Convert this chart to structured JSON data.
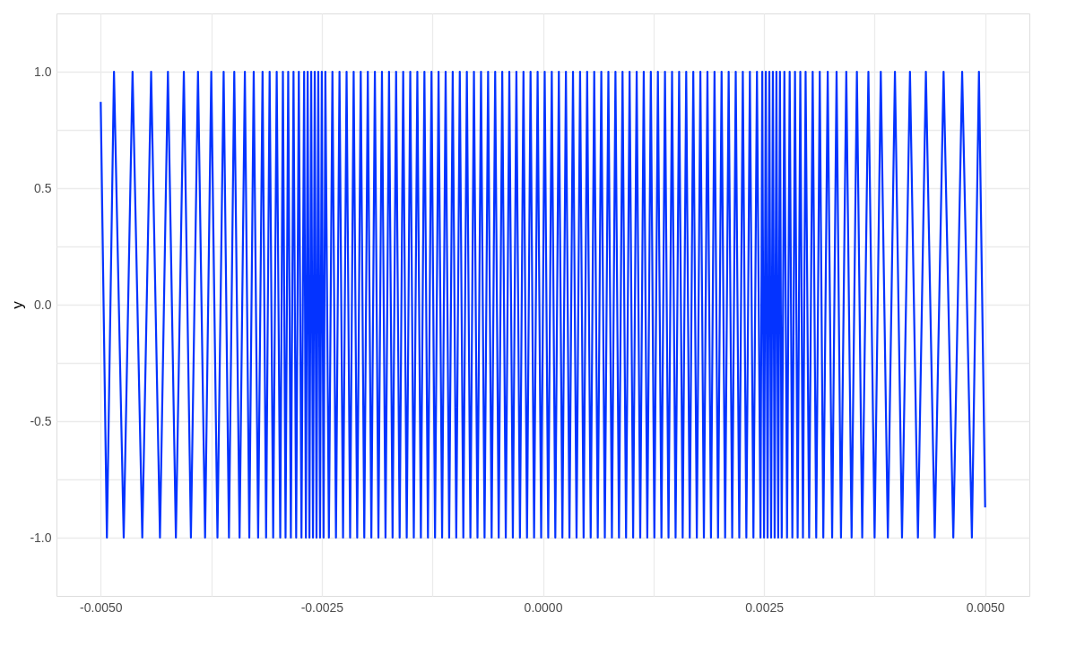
{
  "chart_data": {
    "type": "line",
    "ylabel": "y",
    "grid": true,
    "marker": "none",
    "line_style": "solid",
    "xlim": [
      -0.0055,
      0.0055
    ],
    "ylim": [
      -1.25,
      1.25
    ],
    "xticks": [
      {
        "value": -0.005,
        "label": "-0.0050"
      },
      {
        "value": -0.0025,
        "label": "-0.0025"
      },
      {
        "value": 0,
        "label": "0.0000"
      },
      {
        "value": 0.0025,
        "label": "0.0025"
      },
      {
        "value": 0.005,
        "label": "0.0050"
      }
    ],
    "yticks": [
      {
        "value": -1,
        "label": "-1.0"
      },
      {
        "value": -0.5,
        "label": "-0.5"
      },
      {
        "value": 0,
        "label": "0.0"
      },
      {
        "value": 0.5,
        "label": "0.5"
      },
      {
        "value": 1,
        "label": "1.0"
      }
    ],
    "series": [
      {
        "color": "#0433ff",
        "x": [
          -0.005,
          -0.00493,
          -0.00485,
          -0.00474,
          -0.00464,
          -0.00453,
          -0.00443,
          -0.00433,
          -0.00424,
          -0.00415,
          -0.00406,
          -0.00398,
          -0.0039,
          -0.00382,
          -0.00375,
          -0.00368,
          -0.00361,
          -0.00355,
          -0.00349,
          -0.00343,
          -0.00337,
          -0.00332,
          -0.00327,
          -0.00322,
          -0.00317,
          -0.00313,
          -0.00309,
          -0.00305,
          -0.00301,
          -0.00297,
          -0.00294,
          -0.00291,
          -0.00288,
          -0.00285,
          -0.00282,
          -0.00279,
          -0.00276,
          -0.00273,
          -0.0027,
          -0.00268,
          -0.00266,
          -0.00264,
          -0.00262,
          -0.0026,
          -0.00258,
          -0.00256,
          -0.00254,
          -0.00252,
          -0.0025,
          -0.00248,
          -0.00246,
          -0.00242,
          -0.00238,
          -0.00234,
          -0.0023,
          -0.00226,
          -0.00222,
          -0.00218,
          -0.00214,
          -0.0021,
          -0.00206,
          -0.00202,
          -0.00198,
          -0.00194,
          -0.0019,
          -0.00186,
          -0.00182,
          -0.00178,
          -0.00174,
          -0.0017,
          -0.00166,
          -0.00162,
          -0.00158,
          -0.00154,
          -0.0015,
          -0.00146,
          -0.00142,
          -0.00138,
          -0.00134,
          -0.0013,
          -0.00126,
          -0.00122,
          -0.00118,
          -0.00114,
          -0.0011,
          -0.00106,
          -0.00102,
          -0.00098,
          -0.00094,
          -0.0009,
          -0.00086,
          -0.00082,
          -0.00078,
          -0.00074,
          -0.0007,
          -0.00066,
          -0.00062,
          -0.00058,
          -0.00054,
          -0.0005,
          -0.00046,
          -0.00042,
          -0.00038,
          -0.00034,
          -0.0003,
          -0.00026,
          -0.00022,
          -0.00018,
          -0.00014,
          -0.0001,
          -6e-05,
          -2e-05,
          2e-05,
          6e-05,
          0.0001,
          0.00014,
          0.00018,
          0.00022,
          0.00026,
          0.0003,
          0.00034,
          0.00038,
          0.00042,
          0.00046,
          0.0005,
          0.00054,
          0.00058,
          0.00062,
          0.00066,
          0.0007,
          0.00074,
          0.00078,
          0.00082,
          0.00086,
          0.0009,
          0.00094,
          0.00098,
          0.00102,
          0.00106,
          0.0011,
          0.00114,
          0.00118,
          0.00122,
          0.00126,
          0.0013,
          0.00134,
          0.00138,
          0.00142,
          0.00146,
          0.0015,
          0.00154,
          0.00158,
          0.00162,
          0.00166,
          0.0017,
          0.00174,
          0.00178,
          0.00182,
          0.00186,
          0.0019,
          0.00194,
          0.00198,
          0.00202,
          0.00206,
          0.0021,
          0.00214,
          0.00218,
          0.00222,
          0.00226,
          0.0023,
          0.00234,
          0.00238,
          0.00242,
          0.00246,
          0.00248,
          0.0025,
          0.00252,
          0.00254,
          0.00256,
          0.00258,
          0.0026,
          0.00262,
          0.00264,
          0.00266,
          0.00268,
          0.0027,
          0.00273,
          0.00276,
          0.00279,
          0.00282,
          0.00285,
          0.00288,
          0.00291,
          0.00294,
          0.00297,
          0.00301,
          0.00305,
          0.00309,
          0.00313,
          0.00317,
          0.00322,
          0.00327,
          0.00332,
          0.00337,
          0.00343,
          0.00349,
          0.00355,
          0.00361,
          0.00368,
          0.00375,
          0.00382,
          0.0039,
          0.00398,
          0.00406,
          0.00415,
          0.00424,
          0.00433,
          0.00443,
          0.00453,
          0.00464,
          0.00474,
          0.00485,
          0.00493,
          0.005
        ],
        "values": [
          0.87,
          -1,
          1,
          -1,
          1,
          -1,
          1,
          -1,
          1,
          -1,
          1,
          -1,
          1,
          -1,
          1,
          -1,
          1,
          -1,
          1,
          -1,
          1,
          -1,
          1,
          -1,
          1,
          -1,
          1,
          -1,
          1,
          -1,
          1,
          -1,
          1,
          -1,
          1,
          -1,
          1,
          -1,
          1,
          -1,
          1,
          -1,
          1,
          -1,
          1,
          -1,
          1,
          -1,
          1,
          -1,
          1,
          -1,
          1,
          -1,
          1,
          -1,
          1,
          -1,
          1,
          -1,
          1,
          -1,
          1,
          -1,
          1,
          -1,
          1,
          -1,
          1,
          -1,
          1,
          -1,
          1,
          -1,
          1,
          -1,
          1,
          -1,
          1,
          -1,
          1,
          -1,
          1,
          -1,
          1,
          -1,
          1,
          -1,
          1,
          -1,
          1,
          -1,
          1,
          -1,
          1,
          -1,
          1,
          -1,
          1,
          -1,
          1,
          -1,
          1,
          -1,
          1,
          -1,
          1,
          -1,
          1,
          -1,
          1,
          -1,
          1,
          -1,
          1,
          -1,
          1,
          -1,
          1,
          -1,
          1,
          -1,
          1,
          -1,
          1,
          -1,
          1,
          -1,
          1,
          -1,
          1,
          -1,
          1,
          -1,
          1,
          -1,
          1,
          -1,
          1,
          -1,
          1,
          -1,
          1,
          -1,
          1,
          -1,
          1,
          -1,
          1,
          -1,
          1,
          -1,
          1,
          -1,
          1,
          -1,
          1,
          -1,
          1,
          -1,
          1,
          -1,
          1,
          -1,
          1,
          -1,
          1,
          -1,
          1,
          -1,
          1,
          -1,
          1,
          -1,
          1,
          -1,
          1,
          -1,
          1,
          -1,
          1,
          -1,
          1,
          -1,
          1,
          -1,
          1,
          -1,
          1,
          -1,
          1,
          -1,
          1,
          -1,
          1,
          -1,
          1,
          -1,
          1,
          -1,
          1,
          -1,
          1,
          -1,
          1,
          -1,
          1,
          -1,
          1,
          -1,
          1,
          -1,
          1,
          -1,
          1,
          -1,
          1,
          -1,
          1,
          -1,
          1,
          -1,
          1,
          -0.87
        ]
      }
    ]
  }
}
